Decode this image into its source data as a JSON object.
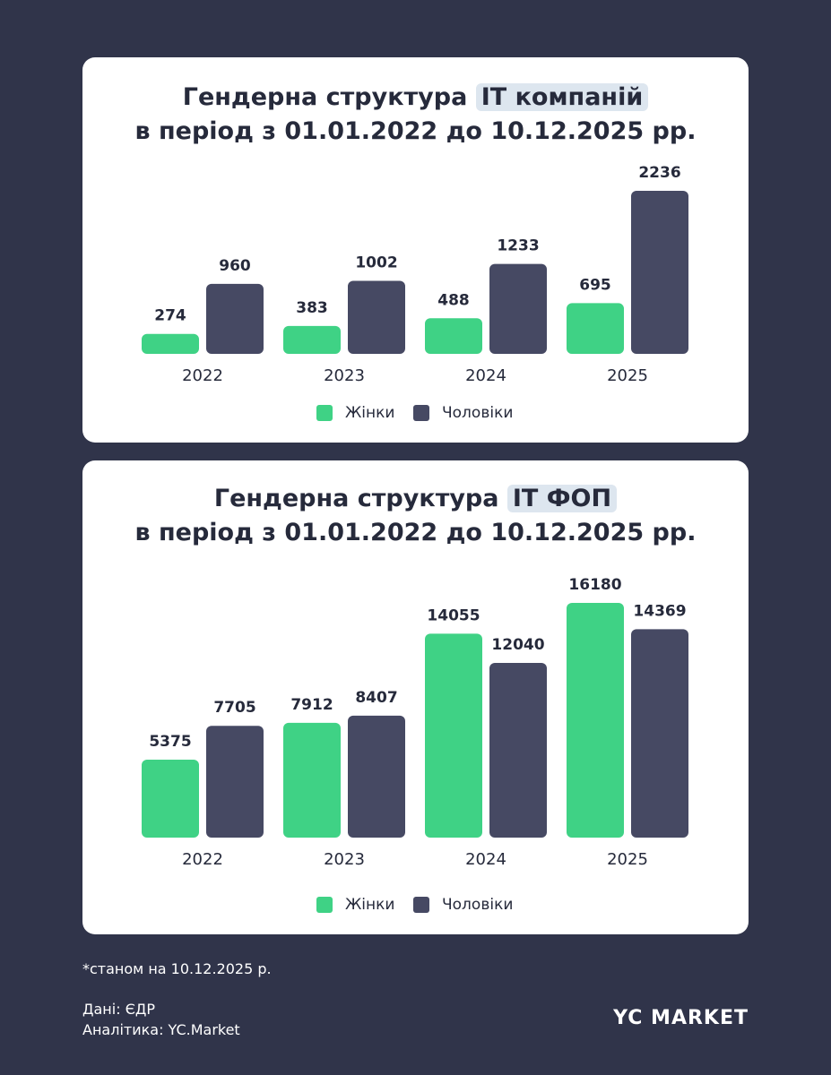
{
  "chart_data": [
    {
      "type": "bar",
      "title": "Гендерна структура",
      "title_highlight": "IT компаній",
      "subtitle": "в період з 01.01.2022 до 10.12.2025 рр.",
      "categories": [
        "2022",
        "2023",
        "2024",
        "2025"
      ],
      "series": [
        {
          "name": "Жінки",
          "color": "#3fd285",
          "values": [
            274,
            383,
            488,
            695
          ]
        },
        {
          "name": "Чоловіки",
          "color": "#464963",
          "values": [
            960,
            1002,
            1233,
            2236
          ]
        }
      ]
    },
    {
      "type": "bar",
      "title": "Гендерна структура",
      "title_highlight": "IT ФОП",
      "subtitle": "в період з 01.01.2022 до 10.12.2025 рр.",
      "categories": [
        "2022",
        "2023",
        "2024",
        "2025"
      ],
      "series": [
        {
          "name": "Жінки",
          "color": "#3fd285",
          "values": [
            5375,
            7912,
            14055,
            16180
          ]
        },
        {
          "name": "Чоловіки",
          "color": "#464963",
          "values": [
            7705,
            8407,
            12040,
            14369
          ]
        }
      ]
    }
  ],
  "footer": {
    "note": "*станом на 10.12.2025 р.",
    "source": "Дані: ЄДР",
    "analytics": "Аналітика: YC.Market",
    "logo": "YC MARKET"
  }
}
